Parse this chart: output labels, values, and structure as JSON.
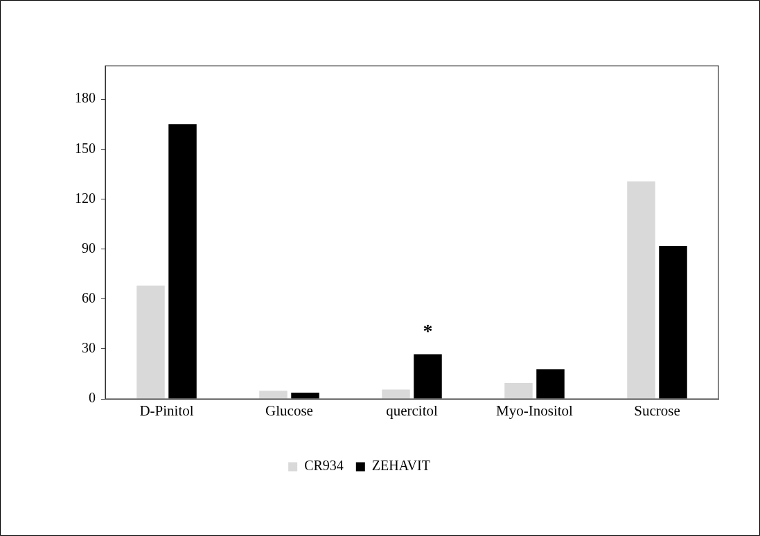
{
  "chart_data": {
    "type": "bar",
    "categories": [
      "D-Pinitol",
      "Glucose",
      "quercitol",
      "Myo-Inositol",
      "Sucrose"
    ],
    "series": [
      {
        "name": "CR934",
        "color": "#d9d9d9",
        "values": [
          68,
          4.9,
          5.6,
          9.6,
          130.6
        ]
      },
      {
        "name": "ZEHAVIT",
        "color": "#000000",
        "values": [
          165,
          3.7,
          26.8,
          17.8,
          91.9
        ]
      }
    ],
    "ylim": [
      0,
      200
    ],
    "yticks": [
      0,
      30,
      60,
      90,
      120,
      150,
      180
    ],
    "grid": false,
    "legend": "bottom",
    "annotations": [
      {
        "text": "*",
        "x": "quercitol",
        "y": 26.8
      }
    ]
  }
}
